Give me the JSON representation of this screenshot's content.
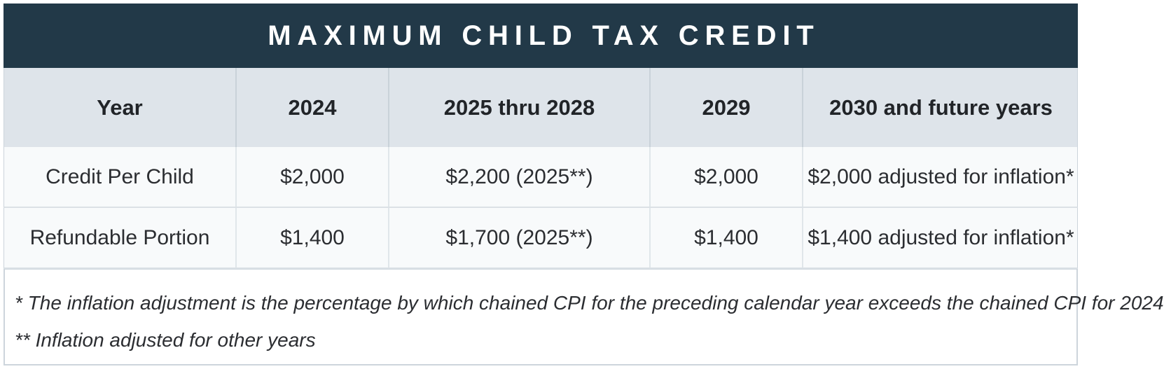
{
  "title": "MAXIMUM CHILD TAX CREDIT",
  "colors": {
    "title_bar_bg": "#223948",
    "title_text": "#ffffff",
    "header_row_bg": "#dee4ea",
    "data_row_bg": "#f8fafb",
    "border": "#ccd4db"
  },
  "table": {
    "columns": [
      "Year",
      "2024",
      "2025 thru 2028",
      "2029",
      "2030 and future years"
    ],
    "rows": [
      {
        "label": "Credit Per Child",
        "values": [
          "$2,000",
          "$2,200 (2025**)",
          "$2,000",
          "$2,000 adjusted for inflation*"
        ]
      },
      {
        "label": "Refundable Portion",
        "values": [
          "$1,400",
          "$1,700 (2025**)",
          "$1,400",
          "$1,400 adjusted for inflation*"
        ]
      }
    ]
  },
  "footnotes": [
    "* The inflation adjustment is the percentage by which chained CPI for the preceding calendar year exceeds the chained CPI for 2024",
    "** Inflation adjusted for other years"
  ],
  "chart_data": {
    "type": "table",
    "title": "MAXIMUM CHILD TAX CREDIT",
    "columns": [
      "Year",
      "2024",
      "2025 thru 2028",
      "2029",
      "2030 and future years"
    ],
    "rows": [
      [
        "Credit Per Child",
        "$2,000",
        "$2,200 (2025**)",
        "$2,000",
        "$2,000 adjusted for inflation*"
      ],
      [
        "Refundable Portion",
        "$1,400",
        "$1,700 (2025**)",
        "$1,400",
        "$1,400 adjusted for inflation*"
      ]
    ],
    "notes": [
      "* The inflation adjustment is the percentage by which chained CPI for the preceding calendar year exceeds the chained CPI for 2024",
      "** Inflation adjusted for other years"
    ]
  }
}
